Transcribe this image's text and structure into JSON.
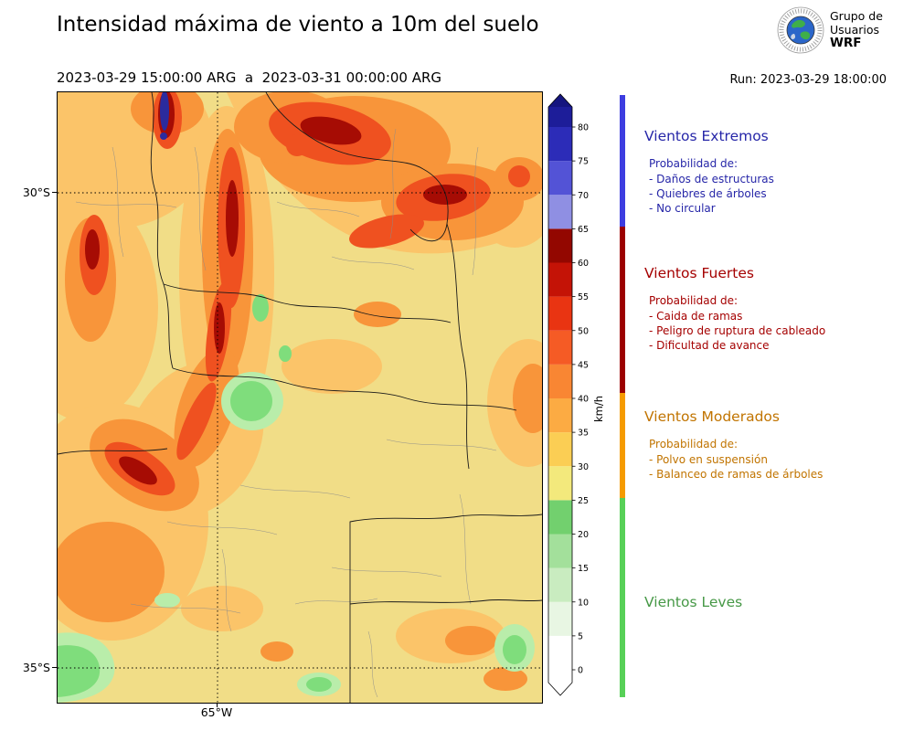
{
  "header": {
    "title": "Intensidad máxima de viento a 10m del suelo",
    "period": "2023-03-29 15:00:00 ARG  a  2023-03-31 00:00:00 ARG",
    "run_label": "Run: 2023-03-29 18:00:00",
    "logo_lines": [
      "Grupo de",
      "Usuarios",
      "WRF"
    ]
  },
  "map": {
    "lat_ticks": [
      {
        "label": "30°S"
      },
      {
        "label": "35°S"
      }
    ],
    "lon_ticks": [
      {
        "label": "65°W"
      }
    ]
  },
  "colorbar": {
    "label": "km/h",
    "ticks": [
      0,
      5,
      10,
      15,
      20,
      25,
      30,
      35,
      40,
      45,
      50,
      55,
      60,
      65,
      70,
      75,
      80
    ],
    "stops": [
      {
        "from": 0,
        "to": 5,
        "color": "#ffffff"
      },
      {
        "from": 5,
        "to": 10,
        "color": "#e8f6e3"
      },
      {
        "from": 10,
        "to": 15,
        "color": "#c9ecc0"
      },
      {
        "from": 15,
        "to": 20,
        "color": "#a3e09b"
      },
      {
        "from": 20,
        "to": 25,
        "color": "#72d06e"
      },
      {
        "from": 25,
        "to": 30,
        "color": "#f3e97c"
      },
      {
        "from": 30,
        "to": 35,
        "color": "#fbce54"
      },
      {
        "from": 35,
        "to": 40,
        "color": "#fcab43"
      },
      {
        "from": 40,
        "to": 45,
        "color": "#f98633"
      },
      {
        "from": 45,
        "to": 50,
        "color": "#f55b25"
      },
      {
        "from": 50,
        "to": 55,
        "color": "#e93412"
      },
      {
        "from": 55,
        "to": 60,
        "color": "#c41306"
      },
      {
        "from": 60,
        "to": 65,
        "color": "#930700"
      },
      {
        "from": 65,
        "to": 70,
        "color": "#8f8fe3"
      },
      {
        "from": 70,
        "to": 75,
        "color": "#5353d6"
      },
      {
        "from": 75,
        "to": 80,
        "color": "#2c2cb8"
      }
    ],
    "over_color": "#1d1d99",
    "arrow_top_color": "#15157f",
    "under_color": "#ffffff"
  },
  "legend": {
    "sections": [
      {
        "title": "Vientos Extremos",
        "color": "#2626a8",
        "bar_color": "#3d3de0",
        "intro": "Probabilidad de:",
        "items": [
          "- Daños de estructuras",
          "- Quiebres de árboles",
          "- No circular"
        ]
      },
      {
        "title": "Vientos Fuertes",
        "color": "#a50000",
        "bar_color": "#9c0000",
        "intro": "Probabilidad de:",
        "items": [
          "- Caida de ramas",
          "- Peligro de ruptura de cableado",
          "- Dificultad de avance"
        ]
      },
      {
        "title": "Vientos Moderados",
        "color": "#c17400",
        "bar_color": "#f59b00",
        "intro": "Probabilidad de:",
        "items": [
          "- Polvo en suspensión",
          "- Balanceo de ramas de árboles"
        ]
      },
      {
        "title": "Vientos Leves",
        "color": "#469846",
        "bar_color": "#57d057",
        "intro": "",
        "items": []
      }
    ]
  }
}
